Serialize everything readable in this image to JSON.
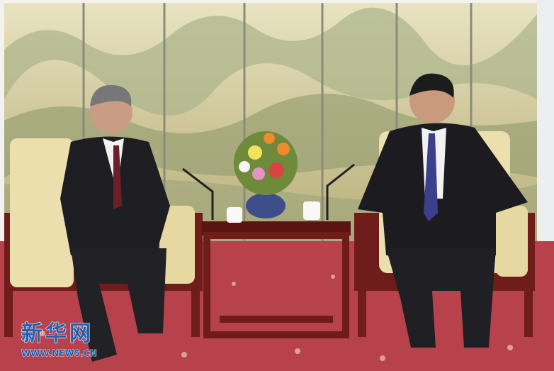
{
  "watermark": {
    "logo": "新华网",
    "url": "WWW.NEWS.CN"
  }
}
